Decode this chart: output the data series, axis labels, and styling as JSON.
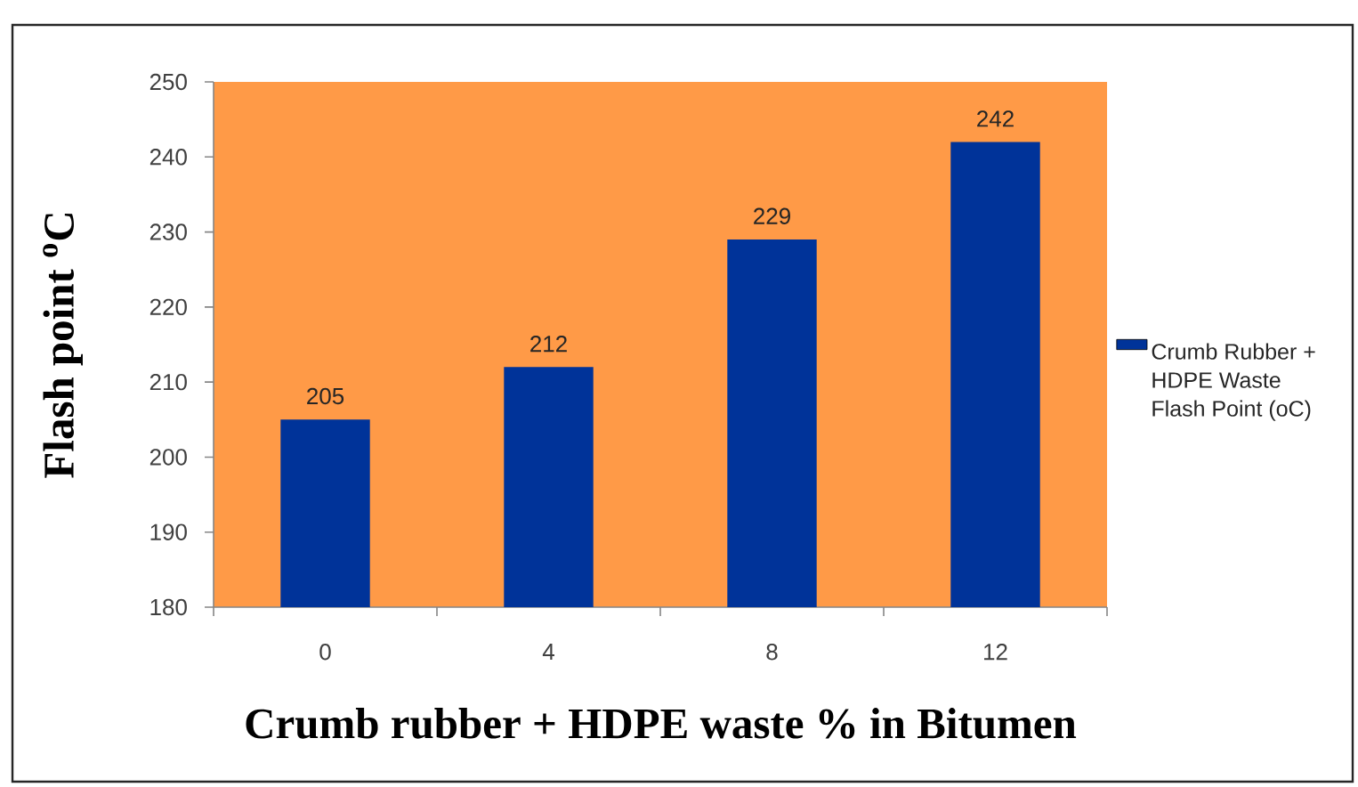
{
  "chart_data": {
    "type": "bar",
    "xlabel": "Crumb rubber + HDPE waste % in Bitumen",
    "ylabel": "Flash point $^{o}$C",
    "categories": [
      "0",
      "4",
      "8",
      "12"
    ],
    "series": [
      {
        "name": "Crumb Rubber + HDPE Waste Flash Point (oC)",
        "color": "#003399",
        "values": [
          205,
          212,
          229,
          242
        ]
      }
    ],
    "ylim": [
      180,
      250
    ],
    "yticks": [
      180,
      190,
      200,
      210,
      220,
      230,
      240,
      250
    ],
    "data_labels": true,
    "legend": "right"
  }
}
